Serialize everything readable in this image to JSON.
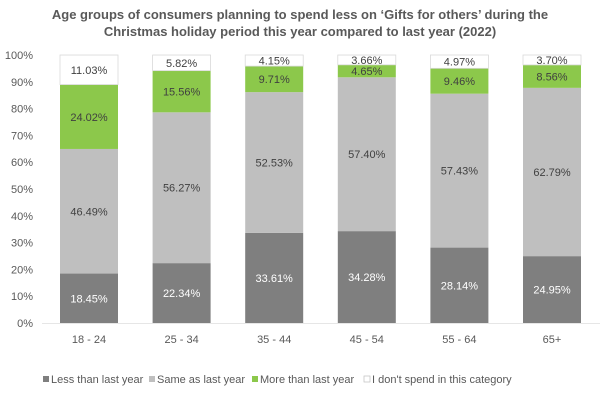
{
  "chart_data": {
    "type": "bar",
    "stacked": true,
    "title_lines": [
      "Age groups of consumers planning to spend less on ‘Gifts for others’ during the",
      "Christmas holiday period this year compared to last year (2022)"
    ],
    "xlabel": "",
    "ylabel": "",
    "categories": [
      "18 - 24",
      "25 - 34",
      "35 - 44",
      "45 - 54",
      "55 - 64",
      "65+"
    ],
    "ylim": [
      0,
      100
    ],
    "yticks": [
      "0%",
      "10%",
      "20%",
      "30%",
      "40%",
      "50%",
      "60%",
      "70%",
      "80%",
      "90%",
      "100%"
    ],
    "grid": false,
    "legend_position": "bottom",
    "series": [
      {
        "name": "Less than last year",
        "color": "#7f7f7f",
        "label_color": "#ffffff",
        "values": [
          18.45,
          22.34,
          33.61,
          34.28,
          28.14,
          24.95
        ],
        "labels": [
          "18.45%",
          "22.34%",
          "33.61%",
          "34.28%",
          "28.14%",
          "24.95%"
        ]
      },
      {
        "name": "Same as last year",
        "color": "#bfbfbf",
        "label_color": "#404040",
        "values": [
          46.49,
          56.27,
          52.53,
          57.4,
          57.43,
          62.79
        ],
        "labels": [
          "46.49%",
          "56.27%",
          "52.53%",
          "57.40%",
          "57.43%",
          "62.79%"
        ]
      },
      {
        "name": "More than last year",
        "color": "#8cc84b",
        "label_color": "#404040",
        "values": [
          24.02,
          15.56,
          9.71,
          4.65,
          9.46,
          8.56
        ],
        "labels": [
          "24.02%",
          "15.56%",
          "9.71%",
          "4.65%",
          "9.46%",
          "8.56%"
        ]
      },
      {
        "name": "I don't spend in this category",
        "color": "#ffffff",
        "label_color": "#404040",
        "values": [
          11.03,
          5.82,
          4.15,
          3.66,
          4.97,
          3.7
        ],
        "labels": [
          "11.03%",
          "5.82%",
          "4.15%",
          "3.66%",
          "4.97%",
          "3.70%"
        ]
      }
    ]
  }
}
